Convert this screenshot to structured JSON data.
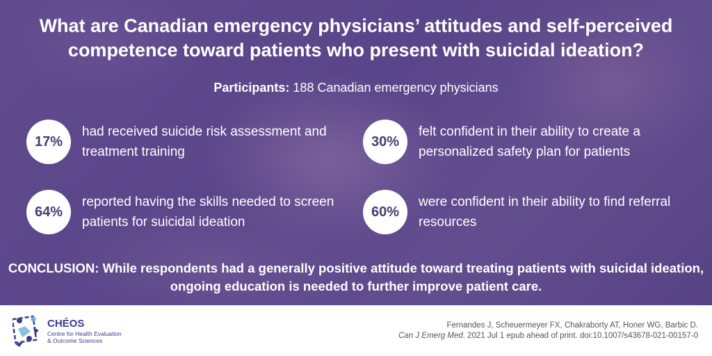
{
  "title": "What are Canadian emergency physicians’ attitudes and self-perceived competence toward patients who present with suicidal ideation?",
  "participants": {
    "label": "Participants:",
    "value": "188 Canadian emergency physicians"
  },
  "stats": [
    {
      "percent": "17%",
      "text": "had received suicide risk assessment and treatment training"
    },
    {
      "percent": "30%",
      "text": "felt confident in their ability to create a personalized safety plan for patients"
    },
    {
      "percent": "64%",
      "text": "reported having the skills needed to screen patients for suicidal ideation"
    },
    {
      "percent": "60%",
      "text": "were confident in their ability to find referral resources"
    }
  ],
  "conclusion": "CONCLUSION: While respondents had a generally positive attitude toward treating patients with suicidal ideation, ongoing education is needed to further improve patient care.",
  "logo": {
    "name": "CHÉOS",
    "sub_line1": "Centre for Health Evaluation",
    "sub_line2": "& Outcome Sciences"
  },
  "citation": {
    "authors": "Fernandes J, Scheuermeyer FX, Chakraborty AT, Honer WG, Barbic D.",
    "journal": "Can J Emerg Med",
    "details": ". 2021 Jul 1 epub ahead of print. doi:10.1007/s43678-021-00157-0"
  },
  "colors": {
    "background_purple": "#5e4a8e",
    "badge_text": "#4a3a72",
    "logo_blue": "#3e3a8a"
  }
}
